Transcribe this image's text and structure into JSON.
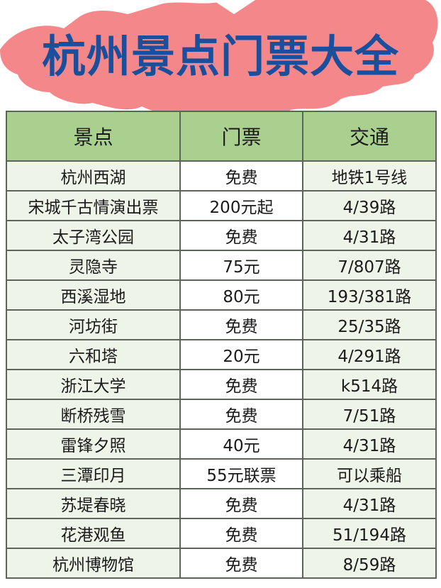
{
  "title": "杭州景点门票大全",
  "colors": {
    "title": "#1b4f9c",
    "banner": "#f4878a",
    "header_bg": "#a9d08e",
    "row_bg": "#eef4e8"
  },
  "table": {
    "headers": [
      "景点",
      "门票",
      "交通"
    ],
    "rows": [
      [
        "杭州西湖",
        "免费",
        "地铁1号线"
      ],
      [
        "宋城千古情演出票",
        "200元起",
        "4/39路"
      ],
      [
        "太子湾公园",
        "免费",
        "4/31路"
      ],
      [
        "灵隐寺",
        "75元",
        "7/807路"
      ],
      [
        "西溪湿地",
        "80元",
        "193/381路"
      ],
      [
        "河坊街",
        "免费",
        "25/35路"
      ],
      [
        "六和塔",
        "20元",
        "4/291路"
      ],
      [
        "浙江大学",
        "免费",
        "k514路"
      ],
      [
        "断桥残雪",
        "免费",
        "7/51路"
      ],
      [
        "雷锋夕照",
        "40元",
        "4/31路"
      ],
      [
        "三潭印月",
        "55元联票",
        "可以乘船"
      ],
      [
        "苏堤春晓",
        "免费",
        "4/31路"
      ],
      [
        "花港观鱼",
        "免费",
        "51/194路"
      ],
      [
        "杭州博物馆",
        "免费",
        "8/59路"
      ]
    ]
  }
}
